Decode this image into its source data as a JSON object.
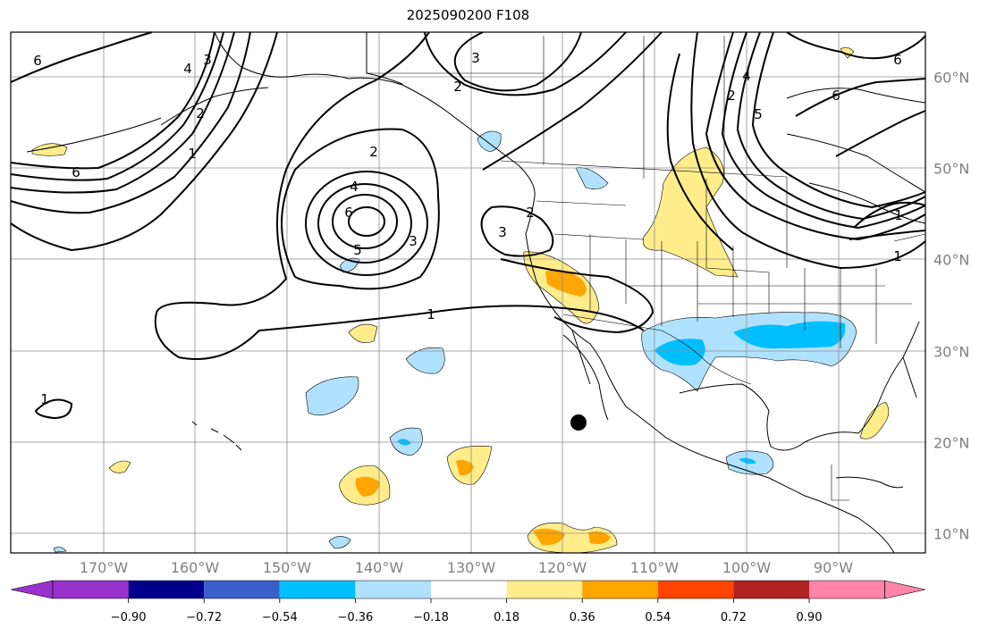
{
  "title": "2025090200 F108",
  "lon_ticks": [
    "170°W",
    "160°W",
    "150°W",
    "140°W",
    "130°W",
    "120°W",
    "110°W",
    "100°W",
    "90°W"
  ],
  "lat_ticks": [
    "60°N",
    "50°N",
    "40°N",
    "30°N",
    "20°N",
    "10°N"
  ],
  "colorbar": {
    "ticks": [
      "−0.90",
      "−0.72",
      "−0.54",
      "−0.36",
      "−0.18",
      "0.18",
      "0.36",
      "0.54",
      "0.72",
      "0.90"
    ],
    "colors": [
      "#9932cc",
      "#00008b",
      "#3a5fcd",
      "#00bfff",
      "#b0e2ff",
      "#ffffff",
      "#ffec8b",
      "#ffa500",
      "#ff4500",
      "#b22222",
      "#ff83aa"
    ],
    "extend": "both"
  },
  "contour_labels": [
    "6",
    "4",
    "3",
    "2",
    "1",
    "6",
    "2",
    "4",
    "6",
    "5",
    "3",
    "1",
    "2",
    "3",
    "2",
    "3",
    "1",
    "2",
    "4",
    "5",
    "6",
    "6",
    "1",
    "1"
  ],
  "marker": "black dot"
}
